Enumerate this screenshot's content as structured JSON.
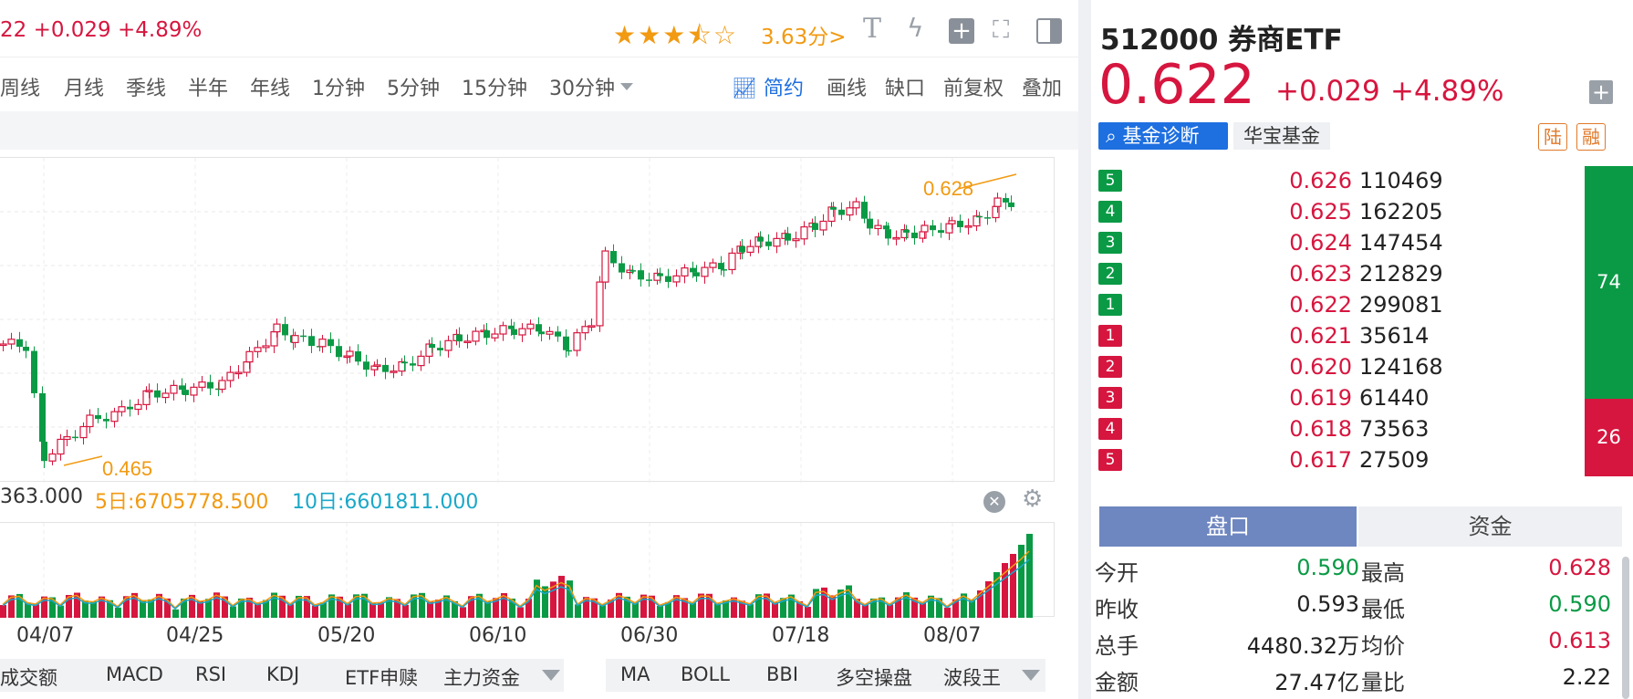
{
  "header": {
    "quote_fragment": "22  +0.029  +4.89%",
    "stars_full": "★★★",
    "stars_half": "⯪",
    "stars_empty": "☆",
    "score": "3.63分>",
    "icons": [
      "text-icon",
      "lightning-icon",
      "add-icon",
      "fullscreen-icon",
      "panel-icon"
    ]
  },
  "periods": [
    "周线",
    "月线",
    "季线",
    "半年",
    "年线",
    "1分钟",
    "5分钟",
    "15分钟",
    "30分钟"
  ],
  "tools": {
    "simple": "简约",
    "draw": "画线",
    "gap": "缺口",
    "adjust": "前复权",
    "overlay": "叠加"
  },
  "chart_data": {
    "type": "candlestick",
    "high_label": "0.628",
    "low_label": "0.465",
    "volume_labels": {
      "current": "363.000",
      "ma5": "5日:6705778.500",
      "ma10": "10日:6601811.000"
    },
    "x_ticks": [
      "04/07",
      "04/25",
      "05/20",
      "06/10",
      "06/30",
      "07/18",
      "08/07"
    ]
  },
  "indicators_left": [
    "成交额",
    "MACD",
    "RSI",
    "KDJ",
    "ETF申赎",
    "主力资金"
  ],
  "indicators_right": [
    "MA",
    "BOLL",
    "BBI",
    "多空操盘",
    "波段王"
  ],
  "fund": {
    "name": "512000 券商ETF",
    "price": "0.622",
    "change": "+0.029",
    "change_pct": "+4.89%",
    "diag_label": "基金诊断",
    "company": "华宝基金",
    "tag1": "陆",
    "tag2": "融"
  },
  "orderbook": [
    {
      "level": "5",
      "side": "sell",
      "price": "0.626",
      "volume": "110469"
    },
    {
      "level": "4",
      "side": "sell",
      "price": "0.625",
      "volume": "162205"
    },
    {
      "level": "3",
      "side": "sell",
      "price": "0.624",
      "volume": "147454"
    },
    {
      "level": "2",
      "side": "sell",
      "price": "0.623",
      "volume": "212829"
    },
    {
      "level": "1",
      "side": "sell",
      "price": "0.622",
      "volume": "299081"
    },
    {
      "level": "1",
      "side": "buy",
      "price": "0.621",
      "volume": "35614"
    },
    {
      "level": "2",
      "side": "buy",
      "price": "0.620",
      "volume": "124168"
    },
    {
      "level": "3",
      "side": "buy",
      "price": "0.619",
      "volume": "61440"
    },
    {
      "level": "4",
      "side": "buy",
      "price": "0.618",
      "volume": "73563"
    },
    {
      "level": "5",
      "side": "buy",
      "price": "0.617",
      "volume": "27509"
    }
  ],
  "ratio": {
    "green": "74",
    "red": "26",
    "green_pct": 74
  },
  "tabs": {
    "active": "盘口",
    "other": "资金"
  },
  "stats": {
    "open_label": "今开",
    "open": "0.590",
    "high_label": "最高",
    "high": "0.628",
    "prev_label": "昨收",
    "prev": "0.593",
    "low_label": "最低",
    "low": "0.590",
    "vol_label": "总手",
    "vol": "4480.32万",
    "avg_label": "均价",
    "avg": "0.613",
    "amt_label": "金额",
    "amt": "27.47亿",
    "ratio_label": "量比",
    "ratio": "2.22"
  },
  "colors": {
    "up": "#d6163f",
    "down": "#0a9a45",
    "accent": "#1e6fe0",
    "tab": "#6f87c0",
    "label": "#f19a12"
  }
}
